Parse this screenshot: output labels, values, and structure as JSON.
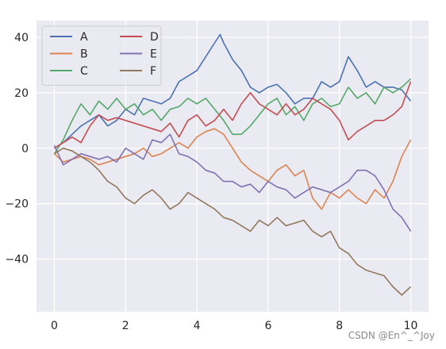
{
  "chart_data": {
    "type": "line",
    "xlim": [
      -0.5,
      10.5
    ],
    "ylim": [
      -59,
      46
    ],
    "x_ticks": [
      0,
      2,
      4,
      6,
      8,
      10
    ],
    "y_ticks": [
      -40,
      -20,
      0,
      20,
      40
    ],
    "x_tick_labels": [
      "0",
      "2",
      "4",
      "6",
      "8",
      "10"
    ],
    "y_tick_labels": [
      "−40",
      "−20",
      "0",
      "20",
      "40"
    ],
    "grid": true,
    "legend": {
      "position": "top-left",
      "columns": 2
    },
    "series": [
      {
        "name": "A",
        "color": "#4c72b0",
        "x": [
          0,
          0.25,
          0.5,
          0.75,
          1,
          1.25,
          1.5,
          1.75,
          2,
          2.25,
          2.5,
          2.75,
          3,
          3.25,
          3.5,
          3.75,
          4,
          4.25,
          4.5,
          4.65,
          4.75,
          5,
          5.25,
          5.5,
          5.75,
          6,
          6.25,
          6.5,
          6.75,
          7,
          7.25,
          7.5,
          7.75,
          8,
          8.25,
          8.5,
          8.75,
          9,
          9.25,
          9.5,
          9.75,
          10
        ],
        "y": [
          0,
          2,
          5,
          8,
          10,
          12,
          8,
          10,
          14,
          12,
          18,
          17,
          16,
          18,
          24,
          26,
          28,
          33,
          38,
          41,
          38,
          32,
          28,
          22,
          20,
          22,
          23,
          20,
          16,
          18,
          18,
          24,
          22,
          24,
          33,
          28,
          22,
          24,
          22,
          22,
          21,
          17
        ]
      },
      {
        "name": "B",
        "color": "#dd8452",
        "x": [
          0,
          0.25,
          0.5,
          0.75,
          1,
          1.25,
          1.5,
          1.75,
          2,
          2.25,
          2.5,
          2.75,
          3,
          3.25,
          3.5,
          3.75,
          4,
          4.25,
          4.5,
          4.75,
          5,
          5.25,
          5.5,
          5.75,
          6,
          6.25,
          6.5,
          6.75,
          7,
          7.25,
          7.5,
          7.75,
          8,
          8.25,
          8.5,
          8.75,
          9,
          9.25,
          9.5,
          9.75,
          10
        ],
        "y": [
          -2,
          -5,
          -4,
          -3,
          -4,
          -6,
          -5,
          -4,
          -3,
          -2,
          0,
          -3,
          -2,
          0,
          2,
          0,
          4,
          6,
          7,
          5,
          0,
          -5,
          -8,
          -10,
          -12,
          -8,
          -6,
          -10,
          -8,
          -18,
          -22,
          -16,
          -18,
          -15,
          -18,
          -20,
          -15,
          -18,
          -12,
          -3,
          3
        ]
      },
      {
        "name": "C",
        "color": "#55a868",
        "x": [
          0,
          0.25,
          0.5,
          0.75,
          1,
          1.25,
          1.5,
          1.75,
          2,
          2.25,
          2.5,
          2.75,
          3,
          3.25,
          3.5,
          3.75,
          4,
          4.25,
          4.5,
          4.75,
          5,
          5.25,
          5.5,
          5.75,
          6,
          6.25,
          6.5,
          6.75,
          7,
          7.25,
          7.5,
          7.75,
          8,
          8.25,
          8.5,
          8.75,
          9,
          9.25,
          9.5,
          9.75,
          10
        ],
        "y": [
          -2,
          3,
          10,
          16,
          12,
          17,
          14,
          18,
          14,
          16,
          12,
          14,
          10,
          14,
          15,
          18,
          16,
          18,
          14,
          10,
          5,
          5,
          8,
          12,
          16,
          18,
          12,
          15,
          10,
          16,
          18,
          15,
          16,
          22,
          18,
          20,
          16,
          22,
          20,
          22,
          25
        ]
      },
      {
        "name": "D",
        "color": "#c44e52",
        "x": [
          0,
          0.25,
          0.5,
          0.75,
          1,
          1.25,
          1.5,
          1.75,
          2,
          2.25,
          2.5,
          2.75,
          3,
          3.25,
          3.5,
          3.75,
          4,
          4.25,
          4.5,
          4.75,
          5,
          5.25,
          5.5,
          5.75,
          6,
          6.25,
          6.5,
          6.75,
          7,
          7.25,
          7.5,
          7.75,
          8,
          8.25,
          8.5,
          8.75,
          9,
          9.25,
          9.5,
          9.75,
          10
        ],
        "y": [
          0,
          2,
          4,
          2,
          8,
          12,
          10,
          11,
          10,
          9,
          8,
          7,
          6,
          9,
          4,
          10,
          12,
          8,
          10,
          14,
          10,
          16,
          20,
          16,
          14,
          12,
          16,
          12,
          14,
          18,
          16,
          14,
          10,
          3,
          6,
          8,
          10,
          10,
          12,
          15,
          24
        ]
      },
      {
        "name": "E",
        "color": "#8172b3",
        "x": [
          0,
          0.25,
          0.5,
          0.75,
          1,
          1.25,
          1.5,
          1.75,
          2,
          2.25,
          2.5,
          2.75,
          3,
          3.25,
          3.5,
          3.75,
          4,
          4.25,
          4.5,
          4.75,
          5,
          5.25,
          5.5,
          5.75,
          6,
          6.25,
          6.5,
          6.75,
          7,
          7.25,
          7.5,
          7.75,
          8,
          8.25,
          8.5,
          8.75,
          9,
          9.25,
          9.5,
          9.75,
          10
        ],
        "y": [
          1,
          -6,
          -4,
          -2,
          -3,
          -4,
          -3,
          -5,
          0,
          -2,
          -4,
          3,
          2,
          5,
          -2,
          -3,
          -5,
          -8,
          -9,
          -12,
          -12,
          -14,
          -13,
          -16,
          -12,
          -14,
          -15,
          -18,
          -16,
          -14,
          -15,
          -16,
          -14,
          -12,
          -8,
          -8,
          -10,
          -15,
          -22,
          -25,
          -30
        ]
      },
      {
        "name": "F",
        "color": "#937860",
        "x": [
          0,
          0.25,
          0.5,
          0.75,
          1,
          1.25,
          1.5,
          1.75,
          2,
          2.25,
          2.5,
          2.75,
          3,
          3.25,
          3.5,
          3.75,
          4,
          4.25,
          4.5,
          4.75,
          5,
          5.25,
          5.5,
          5.75,
          6,
          6.25,
          6.5,
          6.75,
          7,
          7.25,
          7.5,
          7.75,
          8,
          8.25,
          8.5,
          8.75,
          9,
          9.25,
          9.5,
          9.75,
          10
        ],
        "y": [
          -2,
          0,
          -1,
          -3,
          -5,
          -8,
          -12,
          -14,
          -18,
          -20,
          -17,
          -15,
          -18,
          -22,
          -20,
          -16,
          -18,
          -20,
          -22,
          -25,
          -26,
          -28,
          -30,
          -26,
          -28,
          -25,
          -28,
          -27,
          -26,
          -30,
          -32,
          -30,
          -36,
          -38,
          -42,
          -44,
          -45,
          -46,
          -50,
          -53,
          -50
        ]
      }
    ]
  },
  "watermark": "CSDN @En^_^Joy"
}
